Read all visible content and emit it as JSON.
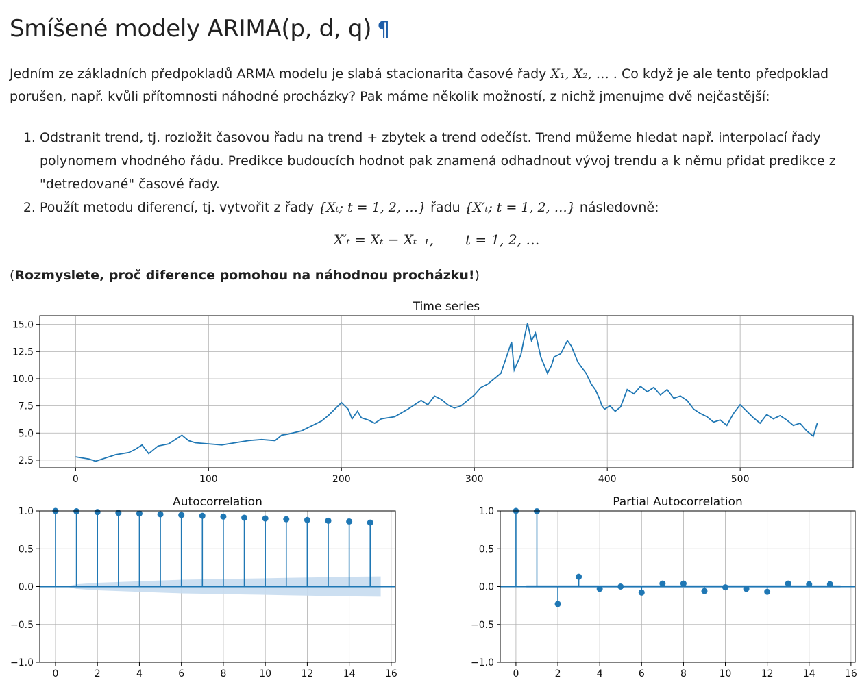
{
  "heading": {
    "title": "Smíšené modely ARIMA(p, d, q)",
    "anchor": "¶"
  },
  "intro": {
    "text_before": "Jedním ze základních předpokladů ARMA modelu je slabá stacionarita časové řady ",
    "math": "X₁, X₂, … .",
    "text_after": " Co když je ale tento předpoklad porušen, např. kvůli přítomnosti náhodné procházky? Pak máme několik možností, z nichž jmenujme dvě nejčastější:"
  },
  "list": {
    "item1": "Odstranit trend, tj. rozložit časovou řadu na trend + zbytek a trend odečíst. Trend můžeme hledat např. interpolací řady polynomem vhodného řádu. Predikce budoucích hodnot pak znamená odhadnout vývoj trendu a k němu přidat predikce z \"detredované\" časové řady.",
    "item2_before": "Použít metodu diferencí, tj. vytvořit z řady ",
    "item2_math1": "{Xₜ; t = 1, 2, …}",
    "item2_mid": " řadu ",
    "item2_math2": "{X′ₜ; t = 1, 2, …}",
    "item2_after": " následovně:"
  },
  "display_math": {
    "lhs": "X′ₜ = Xₜ − Xₜ₋₁,",
    "rhs": "t = 1, 2, …"
  },
  "note": {
    "open": "(",
    "bold": "Rozmyslete, proč diference pomohou na náhodnou procházku!",
    "close": ")"
  },
  "colors": {
    "series": "#1f77b4",
    "confidence": "#c6dbef",
    "grid": "#b0b0b0",
    "anchor": "#1f5ea8"
  },
  "chart_data": [
    {
      "type": "line",
      "title": "Time series",
      "xlim": [
        -27,
        585
      ],
      "ylim": [
        1.8,
        15.8
      ],
      "xticks": [
        0,
        100,
        200,
        300,
        400,
        500
      ],
      "yticks": [
        2.5,
        5.0,
        7.5,
        10.0,
        12.5,
        15.0
      ],
      "ytick_labels": [
        "2.5",
        "5.0",
        "7.5",
        "10.0",
        "12.5",
        "15.0"
      ],
      "grid": true,
      "x": [
        0,
        10,
        15,
        20,
        30,
        40,
        45,
        50,
        55,
        62,
        70,
        80,
        85,
        90,
        100,
        110,
        120,
        130,
        140,
        150,
        155,
        160,
        170,
        175,
        180,
        185,
        190,
        195,
        200,
        205,
        208,
        212,
        215,
        220,
        225,
        230,
        240,
        250,
        260,
        265,
        270,
        275,
        280,
        285,
        290,
        295,
        300,
        305,
        310,
        315,
        320,
        325,
        328,
        330,
        335,
        338,
        340,
        343,
        346,
        350,
        355,
        358,
        360,
        365,
        370,
        373,
        376,
        378,
        381,
        384,
        388,
        391,
        394,
        396,
        398,
        402,
        406,
        410,
        415,
        420,
        425,
        430,
        435,
        440,
        445,
        450,
        455,
        460,
        465,
        470,
        475,
        480,
        485,
        490,
        495,
        500,
        505,
        510,
        515,
        520,
        525,
        530,
        535,
        540,
        545,
        550,
        555,
        558
      ],
      "y": [
        2.8,
        2.6,
        2.4,
        2.6,
        3.0,
        3.2,
        3.5,
        3.9,
        3.1,
        3.8,
        4.0,
        4.8,
        4.3,
        4.1,
        4.0,
        3.9,
        4.1,
        4.3,
        4.4,
        4.3,
        4.8,
        4.9,
        5.2,
        5.5,
        5.8,
        6.1,
        6.6,
        7.2,
        7.8,
        7.2,
        6.3,
        7.0,
        6.4,
        6.2,
        5.9,
        6.3,
        6.5,
        7.2,
        8.0,
        7.6,
        8.4,
        8.1,
        7.6,
        7.3,
        7.5,
        8.0,
        8.5,
        9.2,
        9.5,
        10.0,
        10.5,
        12.3,
        13.4,
        10.8,
        12.2,
        14.0,
        15.1,
        13.5,
        14.2,
        12.0,
        10.5,
        11.2,
        12.0,
        12.3,
        13.5,
        13.0,
        12.1,
        11.5,
        11.0,
        10.5,
        9.5,
        9.0,
        8.2,
        7.5,
        7.2,
        7.5,
        7.0,
        7.4,
        9.0,
        8.6,
        9.3,
        8.8,
        9.2,
        8.5,
        9.0,
        8.2,
        8.4,
        8.0,
        7.2,
        6.8,
        6.5,
        6.0,
        6.2,
        5.7,
        6.8,
        7.6,
        7.0,
        6.4,
        5.9,
        6.7,
        6.3,
        6.6,
        6.2,
        5.7,
        5.9,
        5.2,
        4.7,
        5.9
      ],
      "series": [
        {
          "color": "#1f77b4"
        }
      ]
    },
    {
      "type": "stem",
      "title": "Autocorrelation",
      "xlim": [
        -0.75,
        16.2
      ],
      "ylim": [
        -1.0,
        1.0
      ],
      "xticks": [
        0,
        2,
        4,
        6,
        8,
        10,
        12,
        14,
        16
      ],
      "yticks": [
        -1.0,
        -0.5,
        0.0,
        0.5,
        1.0
      ],
      "ytick_labels": [
        "−1.0",
        "−0.5",
        "0.0",
        "0.5",
        "1.0"
      ],
      "grid": true,
      "x": [
        0,
        1,
        2,
        3,
        4,
        5,
        6,
        7,
        8,
        9,
        10,
        11,
        12,
        13,
        14,
        15
      ],
      "y": [
        1.0,
        0.995,
        0.985,
        0.975,
        0.965,
        0.955,
        0.945,
        0.935,
        0.925,
        0.91,
        0.9,
        0.89,
        0.88,
        0.87,
        0.86,
        0.845
      ],
      "confidence_band": [
        0.0,
        0.03,
        0.05,
        0.06,
        0.07,
        0.08,
        0.09,
        0.095,
        0.1,
        0.105,
        0.11,
        0.115,
        0.12,
        0.125,
        0.13,
        0.135
      ]
    },
    {
      "type": "stem",
      "title": "Partial Autocorrelation",
      "xlim": [
        -0.75,
        16.2
      ],
      "ylim": [
        -1.0,
        1.0
      ],
      "xticks": [
        0,
        2,
        4,
        6,
        8,
        10,
        12,
        14,
        16
      ],
      "yticks": [
        -1.0,
        -0.5,
        0.0,
        0.5,
        1.0
      ],
      "ytick_labels": [
        "−1.0",
        "−0.5",
        "0.0",
        "0.5",
        "1.0"
      ],
      "grid": true,
      "x": [
        0,
        1,
        2,
        3,
        4,
        5,
        6,
        7,
        8,
        9,
        10,
        11,
        12,
        13,
        14,
        15
      ],
      "y": [
        1.0,
        0.995,
        -0.23,
        0.13,
        -0.03,
        0.0,
        -0.08,
        0.04,
        0.04,
        -0.06,
        -0.01,
        -0.03,
        -0.07,
        0.04,
        0.03,
        0.03
      ],
      "confidence_band": [
        0.02,
        0.02,
        0.02,
        0.02,
        0.02,
        0.02,
        0.02,
        0.02,
        0.02,
        0.02,
        0.02,
        0.02,
        0.02,
        0.02,
        0.02,
        0.02
      ]
    }
  ]
}
